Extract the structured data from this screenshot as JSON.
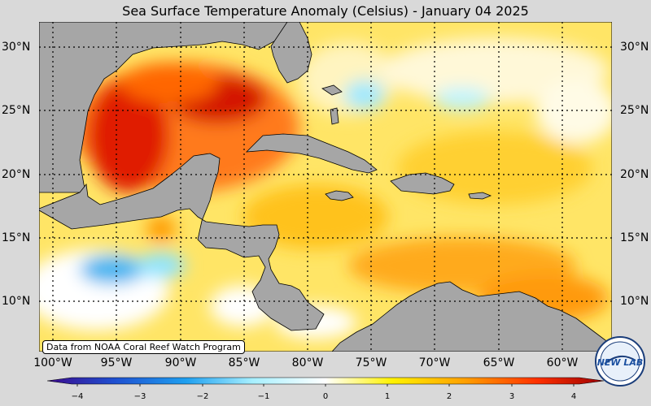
{
  "title": "Sea Surface Temperature Anomaly (Celsius) - January 04 2025",
  "credit": "Data from NOAA Coral Reef Watch Program",
  "lat_labels": [
    "30°N",
    "25°N",
    "20°N",
    "15°N",
    "10°N"
  ],
  "lon_labels": [
    "100°W",
    "95°W",
    "90°W",
    "85°W",
    "80°W",
    "75°W",
    "70°W",
    "65°W",
    "60°W"
  ],
  "colorbar": {
    "ticks": [
      "−4",
      "−3",
      "−2",
      "−1",
      "0",
      "1",
      "2",
      "3",
      "4"
    ],
    "colors": [
      "#3b0a8c",
      "#1f5fd6",
      "#29b6f6",
      "#bff3ff",
      "#ffffff",
      "#fff59d",
      "#ffd21a",
      "#ff9900",
      "#ff3300",
      "#b30000"
    ]
  },
  "logo_text": "NEW LAB",
  "colors": {
    "land": "#a6a6a6",
    "background": "#d9d9d9"
  }
}
